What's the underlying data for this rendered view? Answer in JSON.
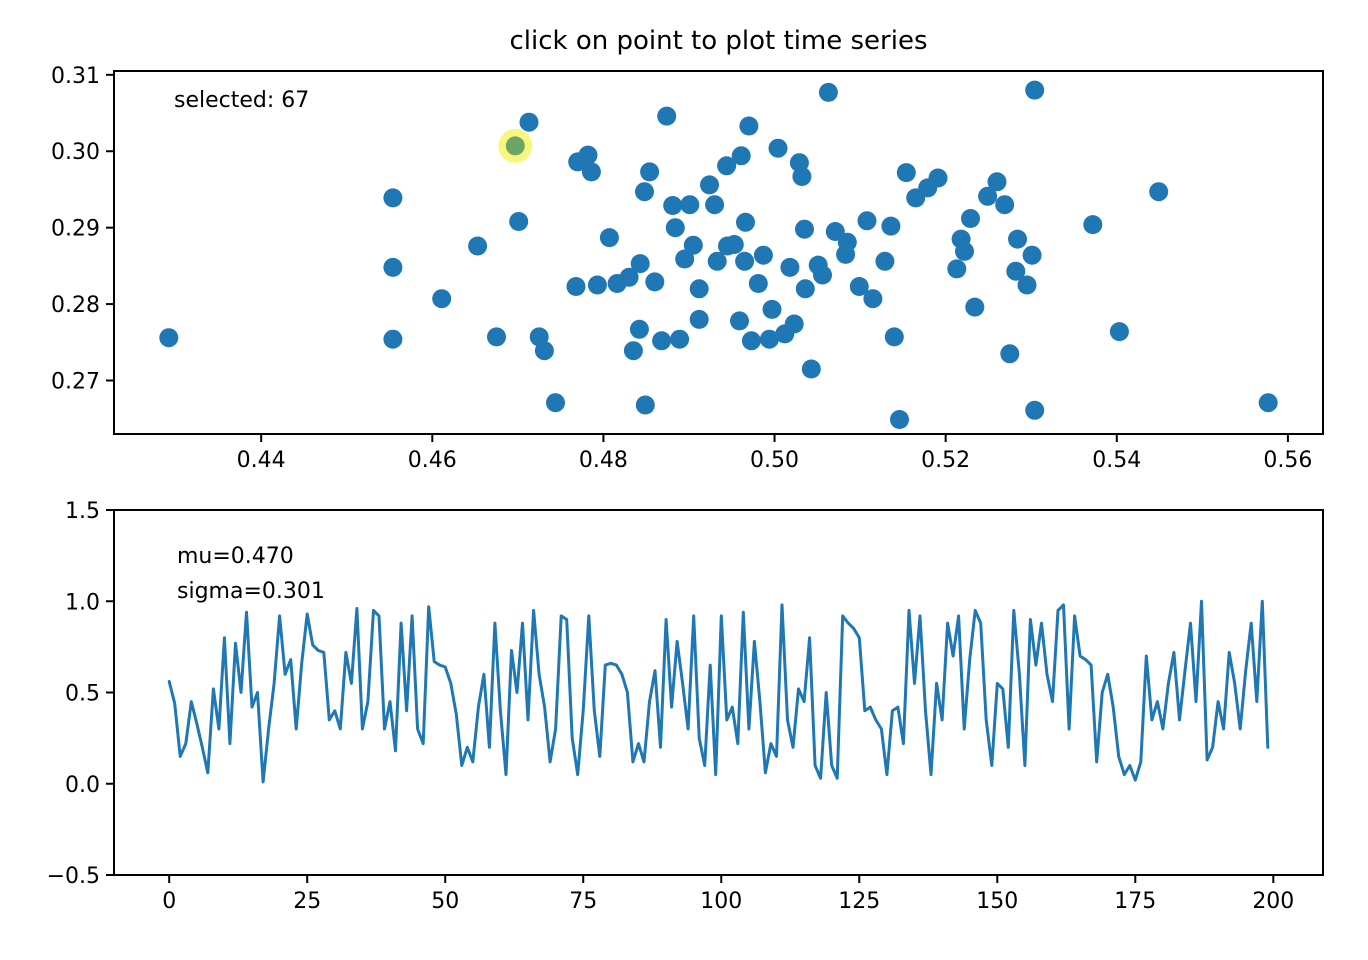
{
  "figure": {
    "background": "#ffffff",
    "axis_color": "#000000"
  },
  "chart_data": [
    {
      "type": "scatter",
      "title": "click on point to plot time series",
      "annotation": "selected: 67",
      "xlim": [
        0.4228,
        0.5641
      ],
      "ylim": [
        0.263,
        0.3105
      ],
      "xticks": [
        0.44,
        0.46,
        0.48,
        0.5,
        0.52,
        0.54,
        0.56
      ],
      "xtick_labels": [
        "0.44",
        "0.46",
        "0.48",
        "0.50",
        "0.52",
        "0.54",
        "0.56"
      ],
      "yticks": [
        0.27,
        0.28,
        0.29,
        0.3,
        0.31
      ],
      "ytick_labels": [
        "0.27",
        "0.28",
        "0.29",
        "0.30",
        "0.31"
      ],
      "marker_color": "#1f77b4",
      "marker_radius": 9.5,
      "points": [
        [
          0.4292,
          0.2756
        ],
        [
          0.4554,
          0.2939
        ],
        [
          0.4554,
          0.2848
        ],
        [
          0.4554,
          0.2754
        ],
        [
          0.4611,
          0.2807
        ],
        [
          0.4653,
          0.2876
        ],
        [
          0.4675,
          0.2757
        ],
        [
          0.4713,
          0.3038
        ],
        [
          0.4701,
          0.2908
        ],
        [
          0.4725,
          0.2757
        ],
        [
          0.4731,
          0.2739
        ],
        [
          0.4744,
          0.2671
        ],
        [
          0.4768,
          0.2823
        ],
        [
          0.477,
          0.2986
        ],
        [
          0.4782,
          0.2995
        ],
        [
          0.4786,
          0.2973
        ],
        [
          0.4793,
          0.2825
        ],
        [
          0.4807,
          0.2887
        ],
        [
          0.4816,
          0.2827
        ],
        [
          0.483,
          0.2835
        ],
        [
          0.4835,
          0.2739
        ],
        [
          0.4842,
          0.2767
        ],
        [
          0.4843,
          0.2853
        ],
        [
          0.4848,
          0.2947
        ],
        [
          0.4854,
          0.2973
        ],
        [
          0.486,
          0.2829
        ],
        [
          0.4849,
          0.2668
        ],
        [
          0.4868,
          0.2752
        ],
        [
          0.4874,
          0.3046
        ],
        [
          0.4881,
          0.2929
        ],
        [
          0.4884,
          0.29
        ],
        [
          0.4889,
          0.2754
        ],
        [
          0.4895,
          0.2859
        ],
        [
          0.4901,
          0.293
        ],
        [
          0.4905,
          0.2877
        ],
        [
          0.4912,
          0.278
        ],
        [
          0.4912,
          0.282
        ],
        [
          0.4924,
          0.2956
        ],
        [
          0.493,
          0.293
        ],
        [
          0.4933,
          0.2856
        ],
        [
          0.4944,
          0.2981
        ],
        [
          0.4945,
          0.2876
        ],
        [
          0.4953,
          0.2878
        ],
        [
          0.4959,
          0.2778
        ],
        [
          0.4961,
          0.2994
        ],
        [
          0.4965,
          0.2856
        ],
        [
          0.4966,
          0.2907
        ],
        [
          0.497,
          0.3033
        ],
        [
          0.4973,
          0.2752
        ],
        [
          0.4981,
          0.2827
        ],
        [
          0.4987,
          0.2864
        ],
        [
          0.4994,
          0.2754
        ],
        [
          0.4997,
          0.2793
        ],
        [
          0.5004,
          0.3004
        ],
        [
          0.5012,
          0.2761
        ],
        [
          0.5018,
          0.2848
        ],
        [
          0.5023,
          0.2774
        ],
        [
          0.5029,
          0.2985
        ],
        [
          0.5032,
          0.2967
        ],
        [
          0.5035,
          0.2898
        ],
        [
          0.5036,
          0.282
        ],
        [
          0.5043,
          0.2715
        ],
        [
          0.5051,
          0.2851
        ],
        [
          0.5056,
          0.2838
        ],
        [
          0.5063,
          0.3077
        ],
        [
          0.5071,
          0.2895
        ],
        [
          0.5083,
          0.2865
        ],
        [
          0.5085,
          0.2881
        ],
        [
          0.5099,
          0.2823
        ],
        [
          0.5108,
          0.2909
        ],
        [
          0.5115,
          0.2807
        ],
        [
          0.5129,
          0.2856
        ],
        [
          0.5136,
          0.2902
        ],
        [
          0.514,
          0.2757
        ],
        [
          0.5146,
          0.2649
        ],
        [
          0.5154,
          0.2972
        ],
        [
          0.5165,
          0.2939
        ],
        [
          0.5179,
          0.2952
        ],
        [
          0.5191,
          0.2965
        ],
        [
          0.5213,
          0.2846
        ],
        [
          0.5218,
          0.2885
        ],
        [
          0.5222,
          0.2869
        ],
        [
          0.5229,
          0.2912
        ],
        [
          0.5234,
          0.2796
        ],
        [
          0.5249,
          0.2941
        ],
        [
          0.526,
          0.296
        ],
        [
          0.5269,
          0.293
        ],
        [
          0.5275,
          0.2735
        ],
        [
          0.5282,
          0.2843
        ],
        [
          0.5284,
          0.2885
        ],
        [
          0.5295,
          0.2825
        ],
        [
          0.5301,
          0.2864
        ],
        [
          0.5304,
          0.2661
        ],
        [
          0.5304,
          0.308
        ],
        [
          0.5372,
          0.2904
        ],
        [
          0.5403,
          0.2764
        ],
        [
          0.5449,
          0.2947
        ],
        [
          0.5577,
          0.2671
        ]
      ],
      "selected": {
        "index_label": 67,
        "x": 0.4697,
        "y": 0.3007,
        "halo_color": "#f6f466",
        "halo_radius": 17,
        "dot_color": "#6ea464",
        "dot_radius": 9.5
      }
    },
    {
      "type": "line",
      "annotations": [
        "mu=0.470",
        "sigma=0.301"
      ],
      "xlim": [
        -10,
        209
      ],
      "ylim": [
        -0.5,
        1.5
      ],
      "xticks": [
        0,
        25,
        50,
        75,
        100,
        125,
        150,
        175,
        200
      ],
      "xtick_labels": [
        "0",
        "25",
        "50",
        "75",
        "100",
        "125",
        "150",
        "175",
        "200"
      ],
      "yticks": [
        -0.5,
        0.0,
        0.5,
        1.0,
        1.5
      ],
      "ytick_labels": [
        "−0.5",
        "0.0",
        "0.5",
        "1.0",
        "1.5"
      ],
      "line_color": "#1f77b4",
      "line_width": 3,
      "x_start": 0,
      "x_step": 1,
      "values": [
        0.56,
        0.44,
        0.15,
        0.22,
        0.45,
        0.33,
        0.2,
        0.06,
        0.52,
        0.3,
        0.8,
        0.22,
        0.77,
        0.5,
        0.94,
        0.42,
        0.5,
        0.01,
        0.3,
        0.55,
        0.92,
        0.6,
        0.68,
        0.3,
        0.66,
        0.93,
        0.76,
        0.73,
        0.72,
        0.35,
        0.4,
        0.3,
        0.72,
        0.55,
        0.96,
        0.3,
        0.45,
        0.95,
        0.92,
        0.3,
        0.45,
        0.18,
        0.88,
        0.4,
        0.92,
        0.3,
        0.22,
        0.97,
        0.67,
        0.65,
        0.64,
        0.55,
        0.38,
        0.1,
        0.2,
        0.12,
        0.42,
        0.6,
        0.2,
        0.88,
        0.4,
        0.05,
        0.73,
        0.5,
        0.88,
        0.35,
        0.95,
        0.6,
        0.42,
        0.12,
        0.3,
        0.92,
        0.9,
        0.25,
        0.05,
        0.4,
        0.92,
        0.4,
        0.15,
        0.65,
        0.66,
        0.65,
        0.6,
        0.5,
        0.12,
        0.22,
        0.12,
        0.45,
        0.62,
        0.2,
        0.9,
        0.42,
        0.78,
        0.55,
        0.3,
        0.92,
        0.25,
        0.1,
        0.65,
        0.05,
        0.92,
        0.35,
        0.42,
        0.22,
        0.94,
        0.3,
        0.78,
        0.45,
        0.06,
        0.22,
        0.15,
        0.98,
        0.35,
        0.2,
        0.52,
        0.45,
        0.8,
        0.1,
        0.03,
        0.5,
        0.1,
        0.03,
        0.92,
        0.88,
        0.85,
        0.8,
        0.4,
        0.42,
        0.35,
        0.3,
        0.05,
        0.4,
        0.42,
        0.22,
        0.95,
        0.55,
        0.92,
        0.4,
        0.05,
        0.55,
        0.35,
        0.88,
        0.7,
        0.92,
        0.3,
        0.68,
        0.95,
        0.88,
        0.35,
        0.1,
        0.55,
        0.52,
        0.2,
        0.95,
        0.6,
        0.1,
        0.9,
        0.65,
        0.88,
        0.6,
        0.45,
        0.95,
        0.98,
        0.3,
        0.92,
        0.7,
        0.68,
        0.65,
        0.12,
        0.5,
        0.6,
        0.42,
        0.15,
        0.05,
        0.1,
        0.02,
        0.12,
        0.7,
        0.35,
        0.45,
        0.3,
        0.55,
        0.72,
        0.35,
        0.62,
        0.88,
        0.45,
        1.0,
        0.13,
        0.2,
        0.45,
        0.3,
        0.72,
        0.55,
        0.3,
        0.62,
        0.88,
        0.45,
        1.0,
        0.2
      ]
    }
  ]
}
